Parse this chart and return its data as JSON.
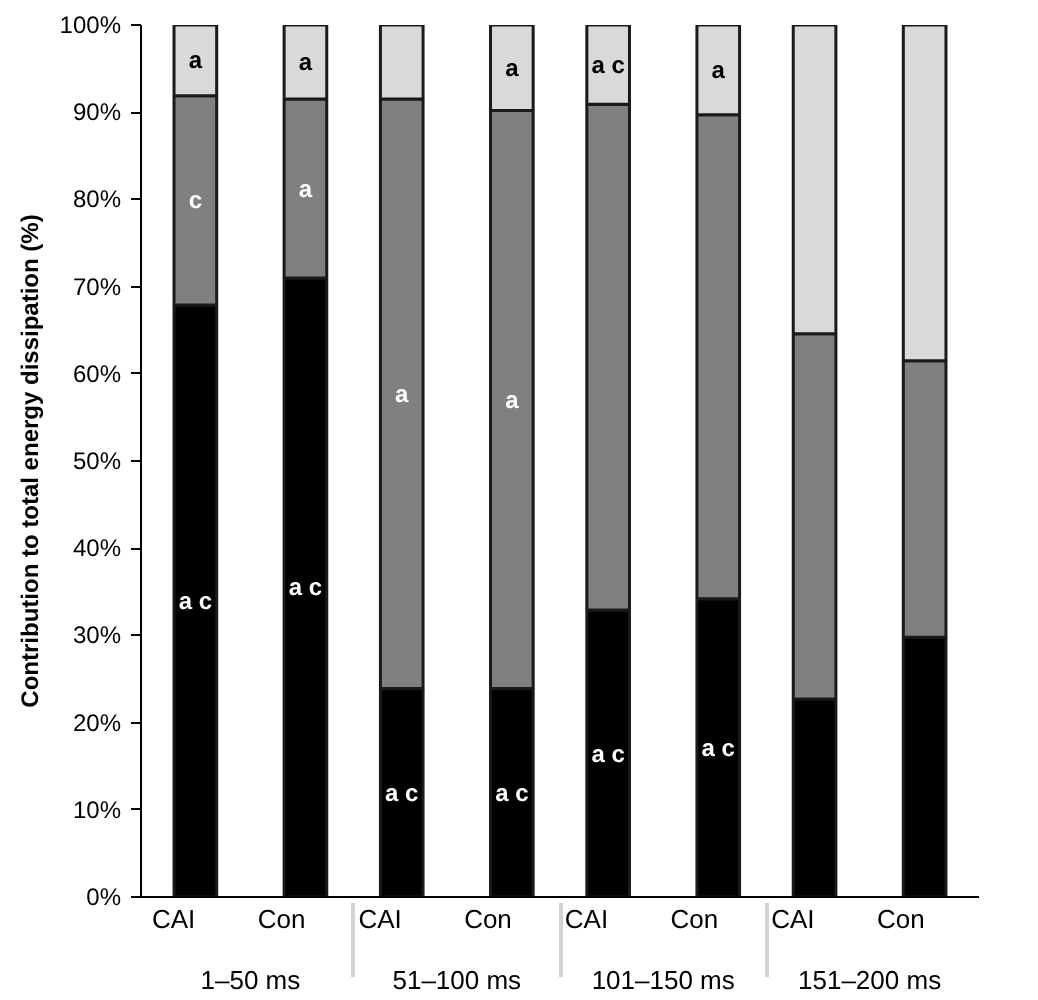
{
  "chart_data": {
    "type": "bar",
    "stacked": true,
    "ylabel": "Contribution to total energy dissipation (%)",
    "categories": [
      "CAI",
      "Con",
      "CAI",
      "Con",
      "CAI",
      "Con",
      "CAI",
      "Con"
    ],
    "annotations": [
      "1–50 ms",
      "51–100 ms",
      "101–150 ms",
      "151–200 ms"
    ],
    "series": [
      {
        "color": "#000000",
        "values": [
          67.9,
          71.0,
          23.9,
          23.9,
          32.9,
          34.2,
          22.7,
          29.8
        ],
        "value_labels": [
          "a c",
          "a c",
          "a c",
          "a c",
          "a c",
          "a c",
          null,
          null
        ]
      },
      {
        "color": "#808080",
        "values": [
          24.0,
          20.5,
          67.6,
          66.3,
          58.0,
          55.5,
          41.9,
          31.7
        ],
        "value_labels": [
          "c",
          "a",
          "a",
          "a",
          null,
          null,
          null,
          null
        ]
      },
      {
        "color": "#d9d9d9",
        "values": [
          8.1,
          8.5,
          8.5,
          9.8,
          9.1,
          10.3,
          35.4,
          38.5
        ],
        "value_labels": [
          "a",
          "a",
          null,
          "a",
          "a c",
          "a",
          null,
          null
        ]
      }
    ],
    "ylim": [
      0,
      100
    ],
    "yticks": [
      {
        "value": 0,
        "label": "0%"
      },
      {
        "value": 10,
        "label": "10%"
      },
      {
        "value": 20,
        "label": "20%"
      },
      {
        "value": 30,
        "label": "30%"
      },
      {
        "value": 40,
        "label": "40%"
      },
      {
        "value": 50,
        "label": "50%"
      },
      {
        "value": 60,
        "label": "60%"
      },
      {
        "value": 70,
        "label": "70%"
      },
      {
        "value": 80,
        "label": "80%"
      },
      {
        "value": 90,
        "label": "90%"
      },
      {
        "value": 100,
        "label": "100%"
      }
    ],
    "grid": false
  }
}
